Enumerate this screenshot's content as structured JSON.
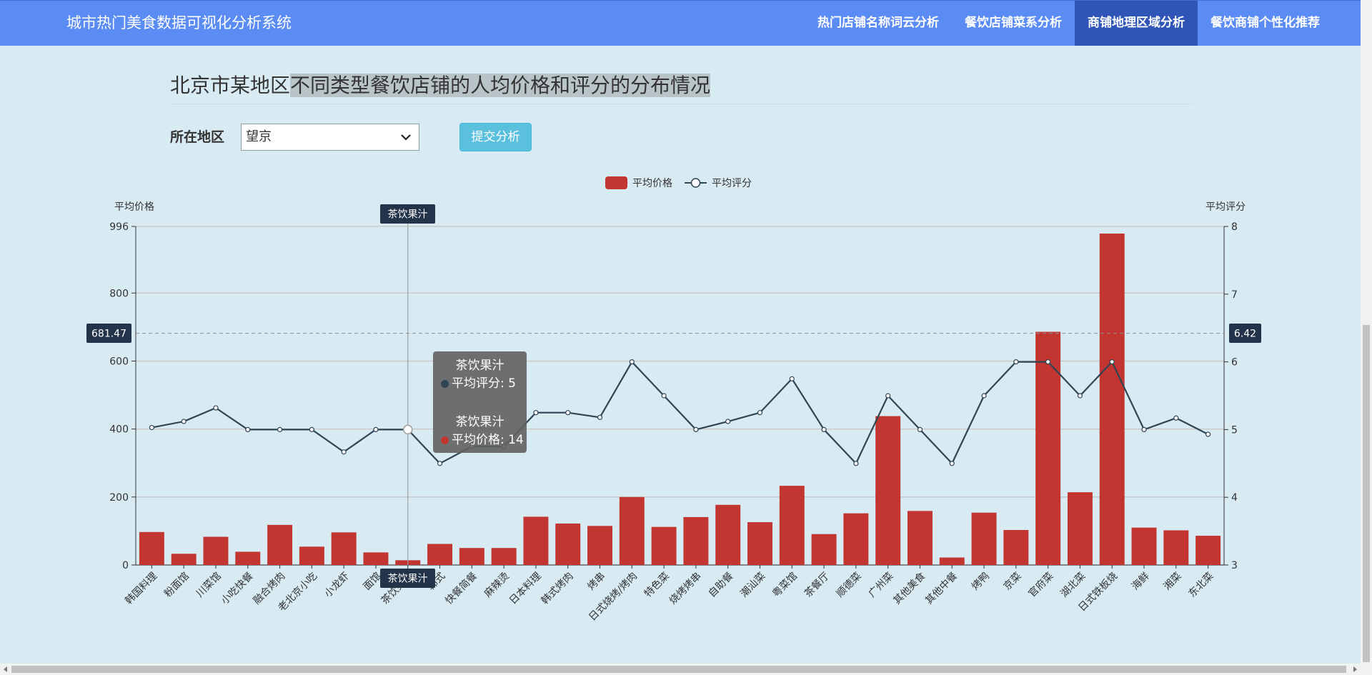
{
  "navbar": {
    "brand": "城市热门美食数据可视化分析系统",
    "items": [
      {
        "label": "热门店铺名称词云分析",
        "active": false
      },
      {
        "label": "餐饮店铺菜系分析",
        "active": false
      },
      {
        "label": "商铺地理区域分析",
        "active": true
      },
      {
        "label": "餐饮商铺个性化推荐",
        "active": false
      }
    ],
    "bg_color": "#5b8cf3",
    "active_color": "#2f55b7"
  },
  "page": {
    "title_plain": "北京市某地区",
    "title_highlight": "不同类型餐饮店铺的人均价格和评分的分布情况"
  },
  "form": {
    "region_label": "所在地区",
    "region_value": "望京",
    "submit_label": "提交分析"
  },
  "tooltip": {
    "rows": [
      {
        "name": "茶饮果汁",
        "line": "平均评分: 5",
        "color": "#2f4554"
      },
      {
        "name": "茶饮果汁",
        "line": "平均价格: 14",
        "color": "#c23531"
      }
    ]
  },
  "chart_data": {
    "type": "bar",
    "legend": [
      "平均价格",
      "平均评分"
    ],
    "legend_position": "top-center",
    "y_left": {
      "label": "平均价格",
      "min": 0,
      "max": 996,
      "ticks": [
        "0",
        "200",
        "400",
        "600",
        "800",
        "996"
      ],
      "tick_values": [
        0,
        200,
        400,
        600,
        800,
        996
      ]
    },
    "y_right": {
      "label": "平均评分",
      "min": 3,
      "max": 8,
      "ticks": [
        "3",
        "4",
        "5",
        "6",
        "7",
        "8"
      ],
      "tick_values": [
        3,
        4,
        5,
        6,
        7,
        8
      ]
    },
    "categories": [
      "韩国料理",
      "粉面馆",
      "川菜馆",
      "小吃快餐",
      "融合烤肉",
      "老北京小吃",
      "小龙虾",
      "面馆",
      "茶饮果汁",
      "韩式",
      "快餐简餐",
      "麻辣烫",
      "日本料理",
      "韩式烤肉",
      "烤串",
      "日式烧烤/烤肉",
      "特色菜",
      "烧烤烤串",
      "自助餐",
      "潮汕菜",
      "粤菜馆",
      "茶餐厅",
      "顺德菜",
      "广州菜",
      "其他美食",
      "其他中餐",
      "烤鸭",
      "京菜",
      "官府菜",
      "湖北菜",
      "日式铁板烧",
      "海鲜",
      "湘菜",
      "东北菜"
    ],
    "series": [
      {
        "name": "平均价格",
        "type": "bar",
        "axis": "left",
        "color": "#c23531",
        "values": [
          97,
          33,
          83,
          39,
          118,
          54,
          96,
          37,
          14,
          62,
          50,
          50,
          142,
          122,
          115,
          200,
          112,
          141,
          177,
          126,
          233,
          91,
          152,
          438,
          159,
          22,
          154,
          103,
          686,
          214,
          975,
          110,
          102,
          86
        ]
      },
      {
        "name": "平均评分",
        "type": "line",
        "axis": "right",
        "color": "#2f4554",
        "values": [
          5.03,
          5.12,
          5.32,
          5.0,
          5.0,
          5.0,
          4.67,
          5.0,
          5.0,
          4.5,
          4.75,
          4.75,
          5.25,
          5.25,
          5.18,
          6.0,
          5.5,
          5.0,
          5.12,
          5.25,
          5.75,
          5.0,
          4.5,
          5.5,
          5.0,
          4.5,
          5.5,
          6.0,
          6.0,
          5.5,
          6.0,
          5.0,
          5.17,
          4.93
        ]
      }
    ],
    "grid": true,
    "pointer": {
      "category": "茶饮果汁",
      "left_value_label": "681.47",
      "right_value_label": "6.42",
      "left_value": 681.47
    }
  }
}
